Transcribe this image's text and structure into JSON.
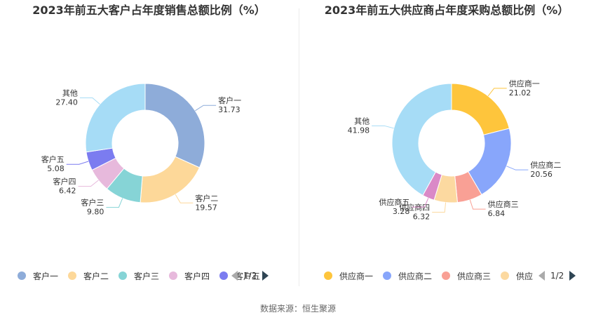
{
  "chart_data": [
    {
      "type": "pie",
      "title": "2023年前五大客户占年度销售总额比例（%）",
      "categories": [
        "客户一",
        "客户二",
        "客户三",
        "客户四",
        "客户五",
        "其他"
      ],
      "values": [
        31.73,
        19.57,
        9.8,
        6.42,
        5.08,
        27.4
      ],
      "value_labels": [
        "31.73",
        "19.57",
        "9.80",
        "6.42",
        "5.08",
        "27.40"
      ],
      "colors": [
        "#8eacd9",
        "#fdd899",
        "#86d4d6",
        "#e7b9dc",
        "#7b7cf0",
        "#a6dcf6"
      ],
      "legend": {
        "labels": [
          "客户一",
          "客户二",
          "客户三",
          "客户四",
          "客户五"
        ],
        "visible_count": 5,
        "page": "1/2",
        "position": "bottom"
      }
    },
    {
      "type": "pie",
      "title": "2023年前五大供应商占年度采购总额比例（%）",
      "categories": [
        "供应商一",
        "供应商二",
        "供应商三",
        "供应商四",
        "供应商五",
        "其他"
      ],
      "values": [
        21.02,
        20.56,
        6.84,
        6.32,
        3.28,
        41.98
      ],
      "value_labels": [
        "21.02",
        "20.56",
        "6.84",
        "6.32",
        "3.28",
        "41.98"
      ],
      "colors": [
        "#fec53c",
        "#88a6fb",
        "#f9a095",
        "#fcd9a0",
        "#da89c7",
        "#a6dcf6"
      ],
      "legend": {
        "labels": [
          "供应商一",
          "供应商二",
          "供应商三",
          "供应"
        ],
        "visible_count": 4,
        "page": "1/2",
        "position": "bottom"
      }
    }
  ],
  "source": "数据来源：恒生聚源"
}
